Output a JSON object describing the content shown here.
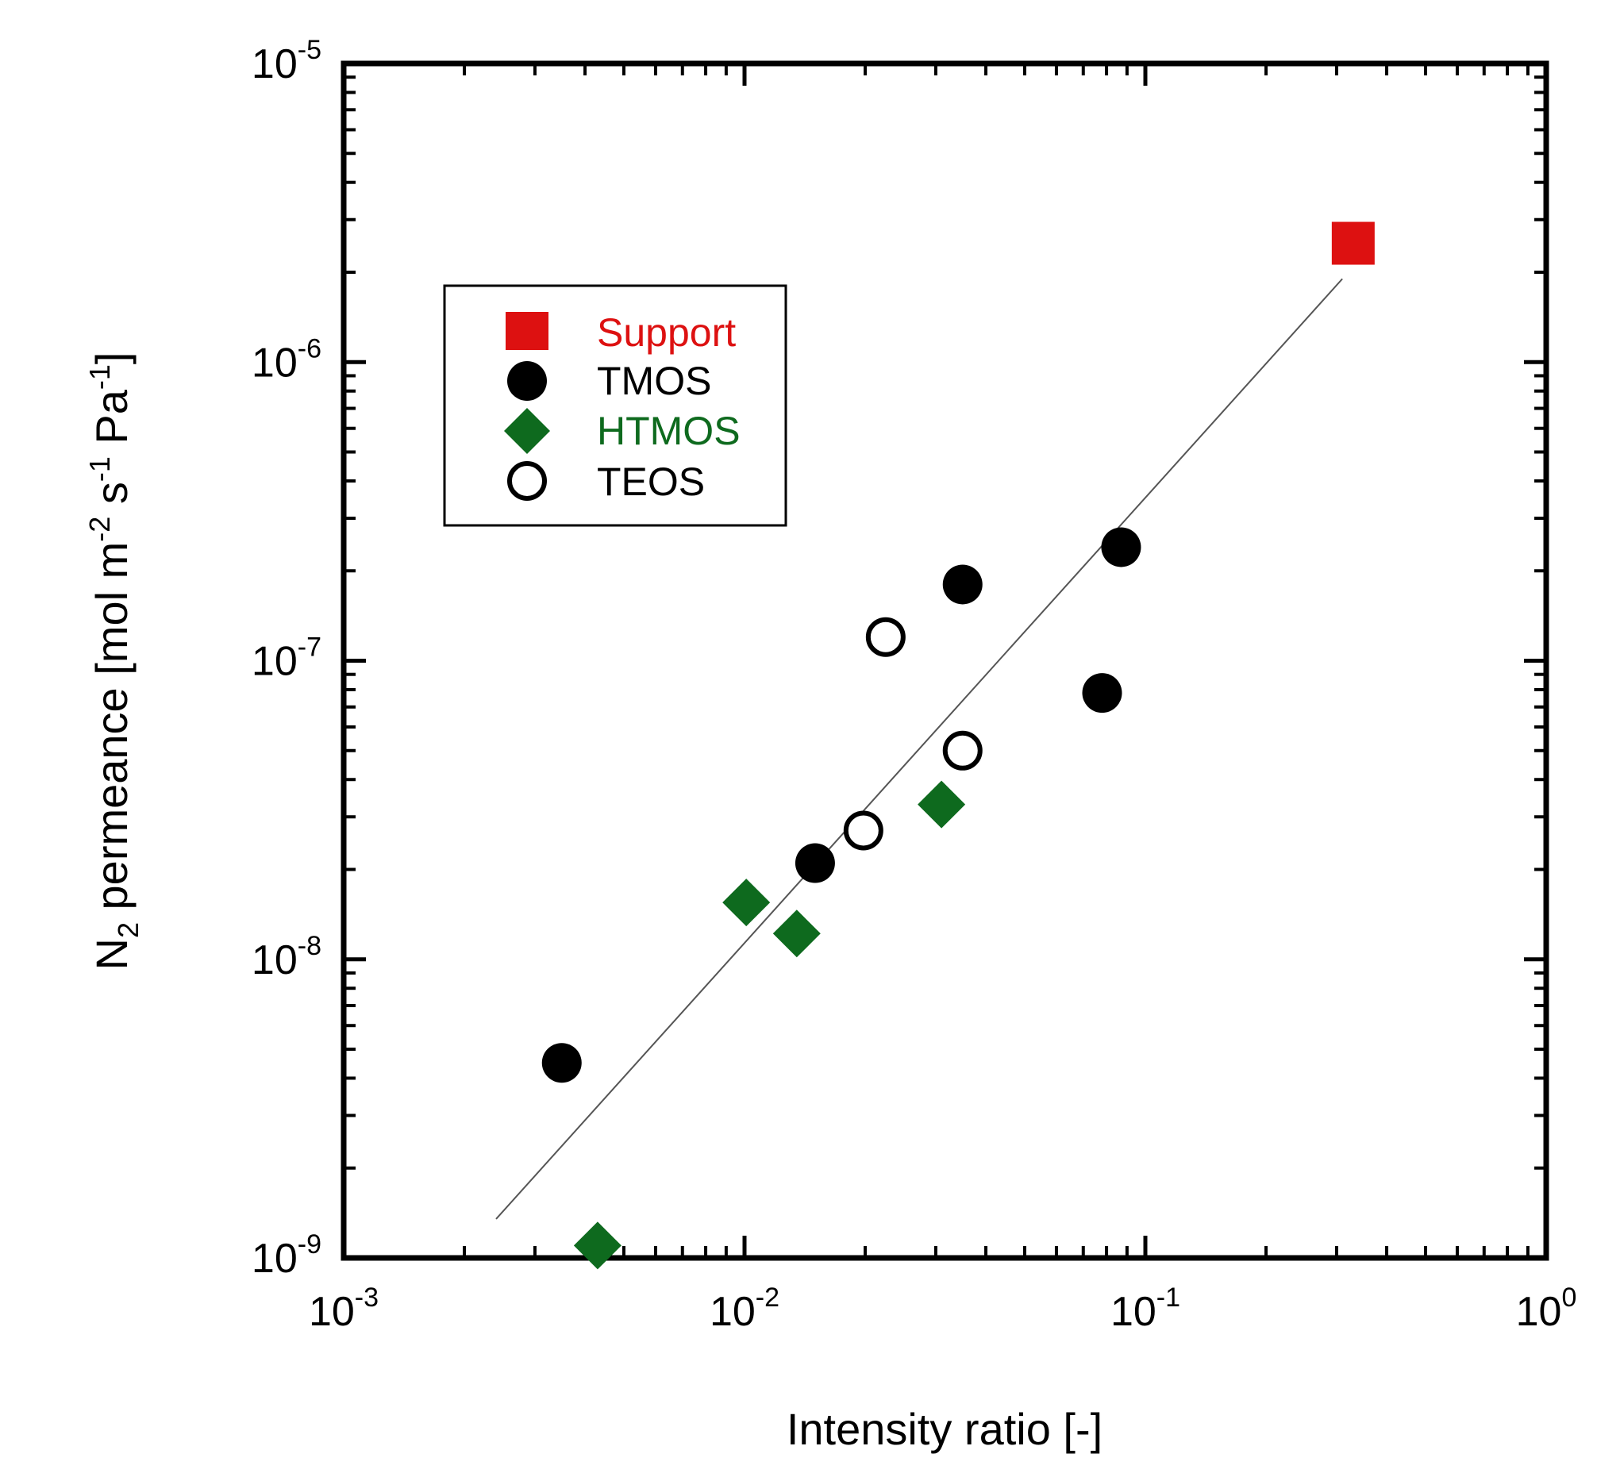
{
  "chart_data": {
    "type": "scatter",
    "scale": {
      "x": "log",
      "y": "log"
    },
    "xlim": [
      0.001,
      1
    ],
    "ylim": [
      1e-09,
      1e-05
    ],
    "xlabel": "Intensity ratio [-]",
    "ylabel": {
      "main": "N",
      "sub": "2",
      "rest": " permeance [mol m",
      "exp1": "-2",
      "mid": " s",
      "exp2": "-1",
      "mid2": " Pa",
      "exp3": "-1",
      "end": "]"
    },
    "x_ticks": [
      {
        "value": 0.001,
        "base": "10",
        "exp": "-3"
      },
      {
        "value": 0.01,
        "base": "10",
        "exp": "-2"
      },
      {
        "value": 0.1,
        "base": "10",
        "exp": "-1"
      },
      {
        "value": 1,
        "base": "10",
        "exp": "0"
      }
    ],
    "y_ticks": [
      {
        "value": 1e-09,
        "base": "10",
        "exp": "-9"
      },
      {
        "value": 1e-08,
        "base": "10",
        "exp": "-8"
      },
      {
        "value": 1e-07,
        "base": "10",
        "exp": "-7"
      },
      {
        "value": 1e-06,
        "base": "10",
        "exp": "-6"
      },
      {
        "value": 1e-05,
        "base": "10",
        "exp": "-5"
      }
    ],
    "legend_position": "upper-left",
    "series": [
      {
        "name": "Support",
        "marker": "square",
        "color": "#dd1111",
        "label_color": "#dd1111",
        "points": [
          {
            "x": 0.33,
            "y": 2.5e-06
          }
        ]
      },
      {
        "name": "TMOS",
        "marker": "circle-filled",
        "color": "#000000",
        "label_color": "#000000",
        "points": [
          {
            "x": 0.0035,
            "y": 4.5e-09
          },
          {
            "x": 0.015,
            "y": 2.1e-08
          },
          {
            "x": 0.035,
            "y": 1.8e-07
          },
          {
            "x": 0.078,
            "y": 7.8e-08
          },
          {
            "x": 0.087,
            "y": 2.4e-07
          }
        ]
      },
      {
        "name": "HTMOS",
        "marker": "diamond",
        "color": "#0e6a1e",
        "label_color": "#0e6a1e",
        "points": [
          {
            "x": 0.0043,
            "y": 1.1e-09
          },
          {
            "x": 0.0101,
            "y": 1.55e-08
          },
          {
            "x": 0.0135,
            "y": 1.22e-08
          },
          {
            "x": 0.031,
            "y": 3.3e-08
          }
        ]
      },
      {
        "name": "TEOS",
        "marker": "circle-open",
        "color": "#000000",
        "label_color": "#000000",
        "points": [
          {
            "x": 0.0198,
            "y": 2.7e-08
          },
          {
            "x": 0.0225,
            "y": 1.2e-07
          },
          {
            "x": 0.035,
            "y": 5e-08
          }
        ]
      }
    ],
    "fit_line": {
      "color": "#555555",
      "points": [
        {
          "x": 0.0024,
          "y": 1.35e-09
        },
        {
          "x": 0.31,
          "y": 1.9e-06
        }
      ]
    }
  }
}
